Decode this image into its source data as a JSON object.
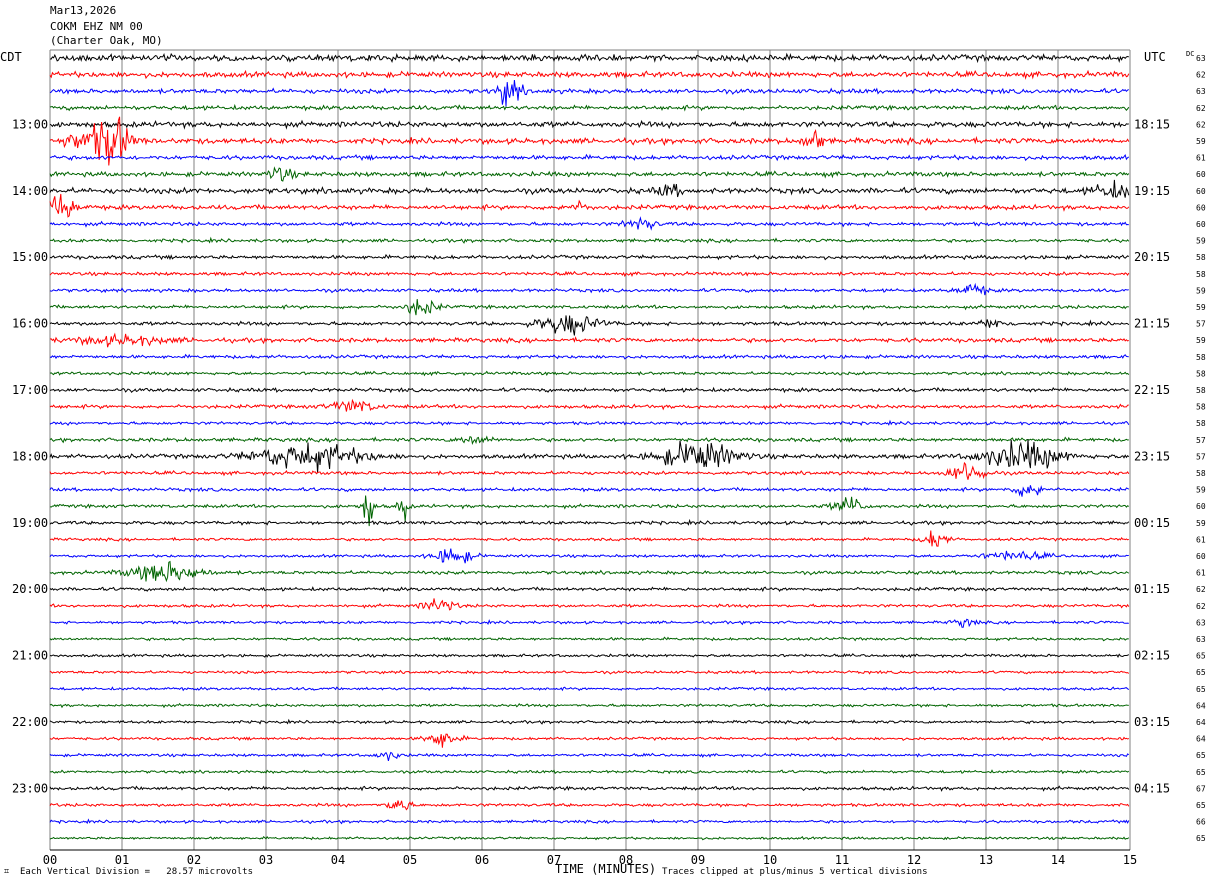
{
  "header": {
    "date": "Mar13,2026",
    "station": "COKM EHZ NM 00",
    "location": "(Charter Oak, MO)"
  },
  "left_tz_label": "CDT",
  "right_tz_label": "UTC",
  "dc_label": "DC",
  "footer": {
    "division_note": "Each Vertical Division =   28.57 microvolts",
    "xlabel": "TIME (MINUTES)",
    "clip_note": "Traces clipped at plus/minus 5 vertical divisions",
    "corner_mark": "⌗"
  },
  "colors": {
    "trace_cycle": [
      "#000000",
      "#ff0000",
      "#0000ff",
      "#006400"
    ],
    "grid": "#808080"
  },
  "chart_data": {
    "type": "line",
    "title": "COKM EHZ NM 00 (Charter Oak, MO) Mar13,2026",
    "xlabel": "TIME (MINUTES)",
    "x_ticks": [
      "00",
      "01",
      "02",
      "03",
      "04",
      "05",
      "06",
      "07",
      "08",
      "09",
      "10",
      "11",
      "12",
      "13",
      "14",
      "15"
    ],
    "xlim": [
      0,
      15
    ],
    "grid": true,
    "trace_minutes_per_line": 15,
    "n_traces": 48,
    "left_hour_labels": [
      {
        "trace": 4,
        "label": "13:00"
      },
      {
        "trace": 8,
        "label": "14:00"
      },
      {
        "trace": 12,
        "label": "15:00"
      },
      {
        "trace": 16,
        "label": "16:00"
      },
      {
        "trace": 20,
        "label": "17:00"
      },
      {
        "trace": 24,
        "label": "18:00"
      },
      {
        "trace": 28,
        "label": "19:00"
      },
      {
        "trace": 32,
        "label": "20:00"
      },
      {
        "trace": 36,
        "label": "21:00"
      },
      {
        "trace": 40,
        "label": "22:00"
      },
      {
        "trace": 44,
        "label": "23:00"
      }
    ],
    "right_hour_labels": [
      {
        "trace": 4,
        "label": "18:15"
      },
      {
        "trace": 8,
        "label": "19:15"
      },
      {
        "trace": 12,
        "label": "20:15"
      },
      {
        "trace": 16,
        "label": "21:15"
      },
      {
        "trace": 20,
        "label": "22:15"
      },
      {
        "trace": 24,
        "label": "23:15"
      },
      {
        "trace": 28,
        "label": "00:15"
      },
      {
        "trace": 32,
        "label": "01:15"
      },
      {
        "trace": 36,
        "label": "02:15"
      },
      {
        "trace": 40,
        "label": "03:15"
      },
      {
        "trace": 44,
        "label": "04:15"
      }
    ],
    "dc_offsets": [
      "63",
      "62",
      "63",
      "62",
      "62",
      "59",
      "61",
      "60",
      "60",
      "60",
      "60",
      "59",
      "58",
      "58",
      "59",
      "59",
      "57",
      "59",
      "58",
      "58",
      "58",
      "58",
      "58",
      "57",
      "57",
      "58",
      "59",
      "60",
      "59",
      "61",
      "60",
      "61",
      "62",
      "62",
      "63",
      "63",
      "65",
      "65",
      "65",
      "64",
      "64",
      "64",
      "65",
      "65",
      "67",
      "65",
      "66",
      "65"
    ],
    "base_amplitude": [
      2.0,
      1.8,
      1.5,
      1.4,
      1.8,
      1.8,
      1.4,
      1.5,
      1.8,
      1.5,
      1.2,
      1.1,
      1.2,
      1.1,
      1.1,
      1.1,
      1.2,
      1.4,
      1.1,
      1.0,
      1.2,
      1.2,
      1.0,
      1.2,
      1.4,
      1.1,
      1.1,
      1.1,
      1.1,
      0.9,
      0.9,
      1.1,
      1.1,
      1.0,
      0.9,
      0.9,
      0.9,
      0.9,
      0.9,
      0.9,
      0.9,
      0.9,
      0.9,
      0.9,
      1.1,
      1.0,
      0.9,
      0.8
    ],
    "events": [
      {
        "trace": 2,
        "minute": 6.38,
        "amplitude": 10,
        "duration": 0.15
      },
      {
        "trace": 5,
        "minute": 0.6,
        "amplitude": 8,
        "duration": 0.35
      },
      {
        "trace": 5,
        "minute": 0.9,
        "amplitude": 14,
        "duration": 0.2
      },
      {
        "trace": 5,
        "minute": 10.6,
        "amplitude": 8,
        "duration": 0.12
      },
      {
        "trace": 7,
        "minute": 3.2,
        "amplitude": 5,
        "duration": 0.15
      },
      {
        "trace": 8,
        "minute": 8.6,
        "amplitude": 4,
        "duration": 0.15
      },
      {
        "trace": 8,
        "minute": 14.8,
        "amplitude": 5,
        "duration": 0.3
      },
      {
        "trace": 9,
        "minute": 0.15,
        "amplitude": 9,
        "duration": 0.2
      },
      {
        "trace": 9,
        "minute": 7.3,
        "amplitude": 3,
        "duration": 0.15
      },
      {
        "trace": 10,
        "minute": 8.2,
        "amplitude": 4,
        "duration": 0.2
      },
      {
        "trace": 14,
        "minute": 12.8,
        "amplitude": 4,
        "duration": 0.2
      },
      {
        "trace": 15,
        "minute": 5.15,
        "amplitude": 6,
        "duration": 0.2
      },
      {
        "trace": 16,
        "minute": 7.2,
        "amplitude": 7,
        "duration": 0.4
      },
      {
        "trace": 16,
        "minute": 13.1,
        "amplitude": 3,
        "duration": 0.2
      },
      {
        "trace": 17,
        "minute": 1.0,
        "amplitude": 3,
        "duration": 0.6
      },
      {
        "trace": 21,
        "minute": 4.2,
        "amplitude": 4,
        "duration": 0.3
      },
      {
        "trace": 23,
        "minute": 5.9,
        "amplitude": 3,
        "duration": 0.2
      },
      {
        "trace": 24,
        "minute": 3.6,
        "amplitude": 9,
        "duration": 0.7
      },
      {
        "trace": 24,
        "minute": 9.0,
        "amplitude": 10,
        "duration": 0.5
      },
      {
        "trace": 24,
        "minute": 13.5,
        "amplitude": 10,
        "duration": 0.5
      },
      {
        "trace": 25,
        "minute": 12.75,
        "amplitude": 7,
        "duration": 0.25
      },
      {
        "trace": 26,
        "minute": 13.6,
        "amplitude": 5,
        "duration": 0.2
      },
      {
        "trace": 27,
        "minute": 4.42,
        "amplitude": 14,
        "duration": 0.08
      },
      {
        "trace": 27,
        "minute": 4.9,
        "amplitude": 12,
        "duration": 0.06
      },
      {
        "trace": 27,
        "minute": 11.1,
        "amplitude": 6,
        "duration": 0.2
      },
      {
        "trace": 29,
        "minute": 12.3,
        "amplitude": 7,
        "duration": 0.15
      },
      {
        "trace": 30,
        "minute": 5.6,
        "amplitude": 6,
        "duration": 0.25
      },
      {
        "trace": 30,
        "minute": 13.4,
        "amplitude": 3,
        "duration": 0.4
      },
      {
        "trace": 31,
        "minute": 1.6,
        "amplitude": 7,
        "duration": 0.45
      },
      {
        "trace": 33,
        "minute": 5.4,
        "amplitude": 5,
        "duration": 0.2
      },
      {
        "trace": 34,
        "minute": 12.7,
        "amplitude": 3,
        "duration": 0.15
      },
      {
        "trace": 41,
        "minute": 5.45,
        "amplitude": 6,
        "duration": 0.2
      },
      {
        "trace": 42,
        "minute": 4.7,
        "amplitude": 3,
        "duration": 0.15
      },
      {
        "trace": 45,
        "minute": 4.85,
        "amplitude": 8,
        "duration": 0.12
      }
    ]
  }
}
